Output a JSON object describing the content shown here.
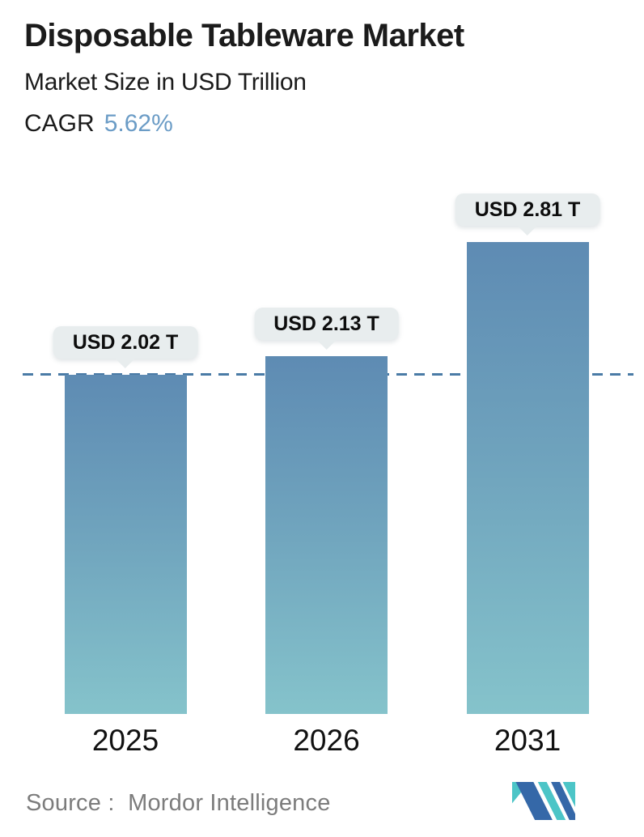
{
  "header": {
    "title": "Disposable Tableware Market",
    "subtitle": "Market Size in USD Trillion",
    "cagr_label": "CAGR",
    "cagr_value": "5.62%"
  },
  "chart_data": {
    "type": "bar",
    "categories": [
      "2025",
      "2026",
      "2031"
    ],
    "values": [
      2.02,
      2.13,
      2.81
    ],
    "bar_labels": [
      "USD 2.02 T",
      "USD 2.13 T",
      "USD 2.81 T"
    ],
    "unit": "USD Trillion",
    "title": "Disposable Tableware Market",
    "xlabel": "",
    "ylabel": "Market Size in USD Trillion",
    "ylim": [
      0,
      3
    ],
    "grid": "off",
    "legend": "none",
    "reference_line": {
      "value": 2.02,
      "style": "dashed"
    }
  },
  "footer": {
    "source": "Source :  Mordor Intelligence",
    "logo_name": "mordor-intelligence-logo"
  },
  "colors": {
    "accent": "#6b9cc6",
    "text_dark": "#1b1b1b",
    "bar_top": "#5e8bb3",
    "bar_bottom": "#85c3cb",
    "dashed_line": "#4a7ba6",
    "bubble_bg": "#e8edee",
    "source_gray": "#7c7c7c",
    "logo_blue": "#3568a8",
    "logo_teal": "#4cc5c7"
  }
}
